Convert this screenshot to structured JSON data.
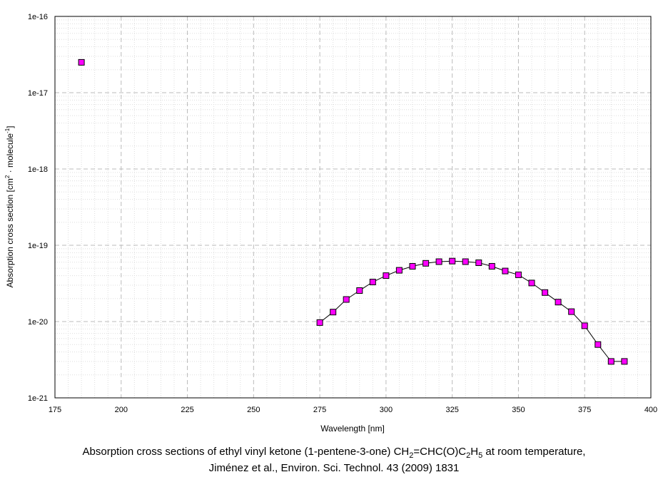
{
  "chart_data": {
    "type": "scatter",
    "xlabel": "Wavelength [nm]",
    "ylabel_parts": [
      "Absorption cross section [cm",
      "2",
      " · molecule",
      "-1",
      "]"
    ],
    "xlim": [
      175,
      400
    ],
    "ylim": [
      1e-21,
      1e-16
    ],
    "y_scale": "log",
    "grid": true,
    "x_ticks": [
      "175",
      "200",
      "225",
      "250",
      "275",
      "300",
      "325",
      "350",
      "375",
      "400"
    ],
    "y_ticks": [
      "1e-21",
      "1e-20",
      "1e-19",
      "1e-18",
      "1e-17",
      "1e-16"
    ],
    "marker_color": "#ff00ff",
    "line_color": "#000000",
    "points": [
      {
        "x": 185,
        "y": 2.5e-17
      },
      {
        "x": 275,
        "y": 9.7e-21
      },
      {
        "x": 280,
        "y": 1.33e-20
      },
      {
        "x": 285,
        "y": 1.95e-20
      },
      {
        "x": 290,
        "y": 2.55e-20
      },
      {
        "x": 295,
        "y": 3.3e-20
      },
      {
        "x": 300,
        "y": 4e-20
      },
      {
        "x": 305,
        "y": 4.7e-20
      },
      {
        "x": 310,
        "y": 5.3e-20
      },
      {
        "x": 315,
        "y": 5.8e-20
      },
      {
        "x": 320,
        "y": 6.1e-20
      },
      {
        "x": 325,
        "y": 6.2e-20
      },
      {
        "x": 330,
        "y": 6.1e-20
      },
      {
        "x": 335,
        "y": 5.9e-20
      },
      {
        "x": 340,
        "y": 5.3e-20
      },
      {
        "x": 345,
        "y": 4.6e-20
      },
      {
        "x": 350,
        "y": 4.1e-20
      },
      {
        "x": 355,
        "y": 3.2e-20
      },
      {
        "x": 360,
        "y": 2.4e-20
      },
      {
        "x": 365,
        "y": 1.8e-20
      },
      {
        "x": 370,
        "y": 1.35e-20
      },
      {
        "x": 375,
        "y": 8.8e-21
      },
      {
        "x": 380,
        "y": 5e-21
      },
      {
        "x": 385,
        "y": 3e-21
      },
      {
        "x": 390,
        "y": 3e-21
      }
    ],
    "line_from_x": 275
  },
  "caption": {
    "line1_parts": [
      "Absorption cross sections of ethyl vinyl ketone (1-pentene-3-one) CH",
      "2",
      "=CHC(O)C",
      "2",
      "H",
      "5",
      " at room temperature,"
    ],
    "line2": "Jiménez et al., Environ. Sci. Technol. 43 (2009) 1831"
  }
}
